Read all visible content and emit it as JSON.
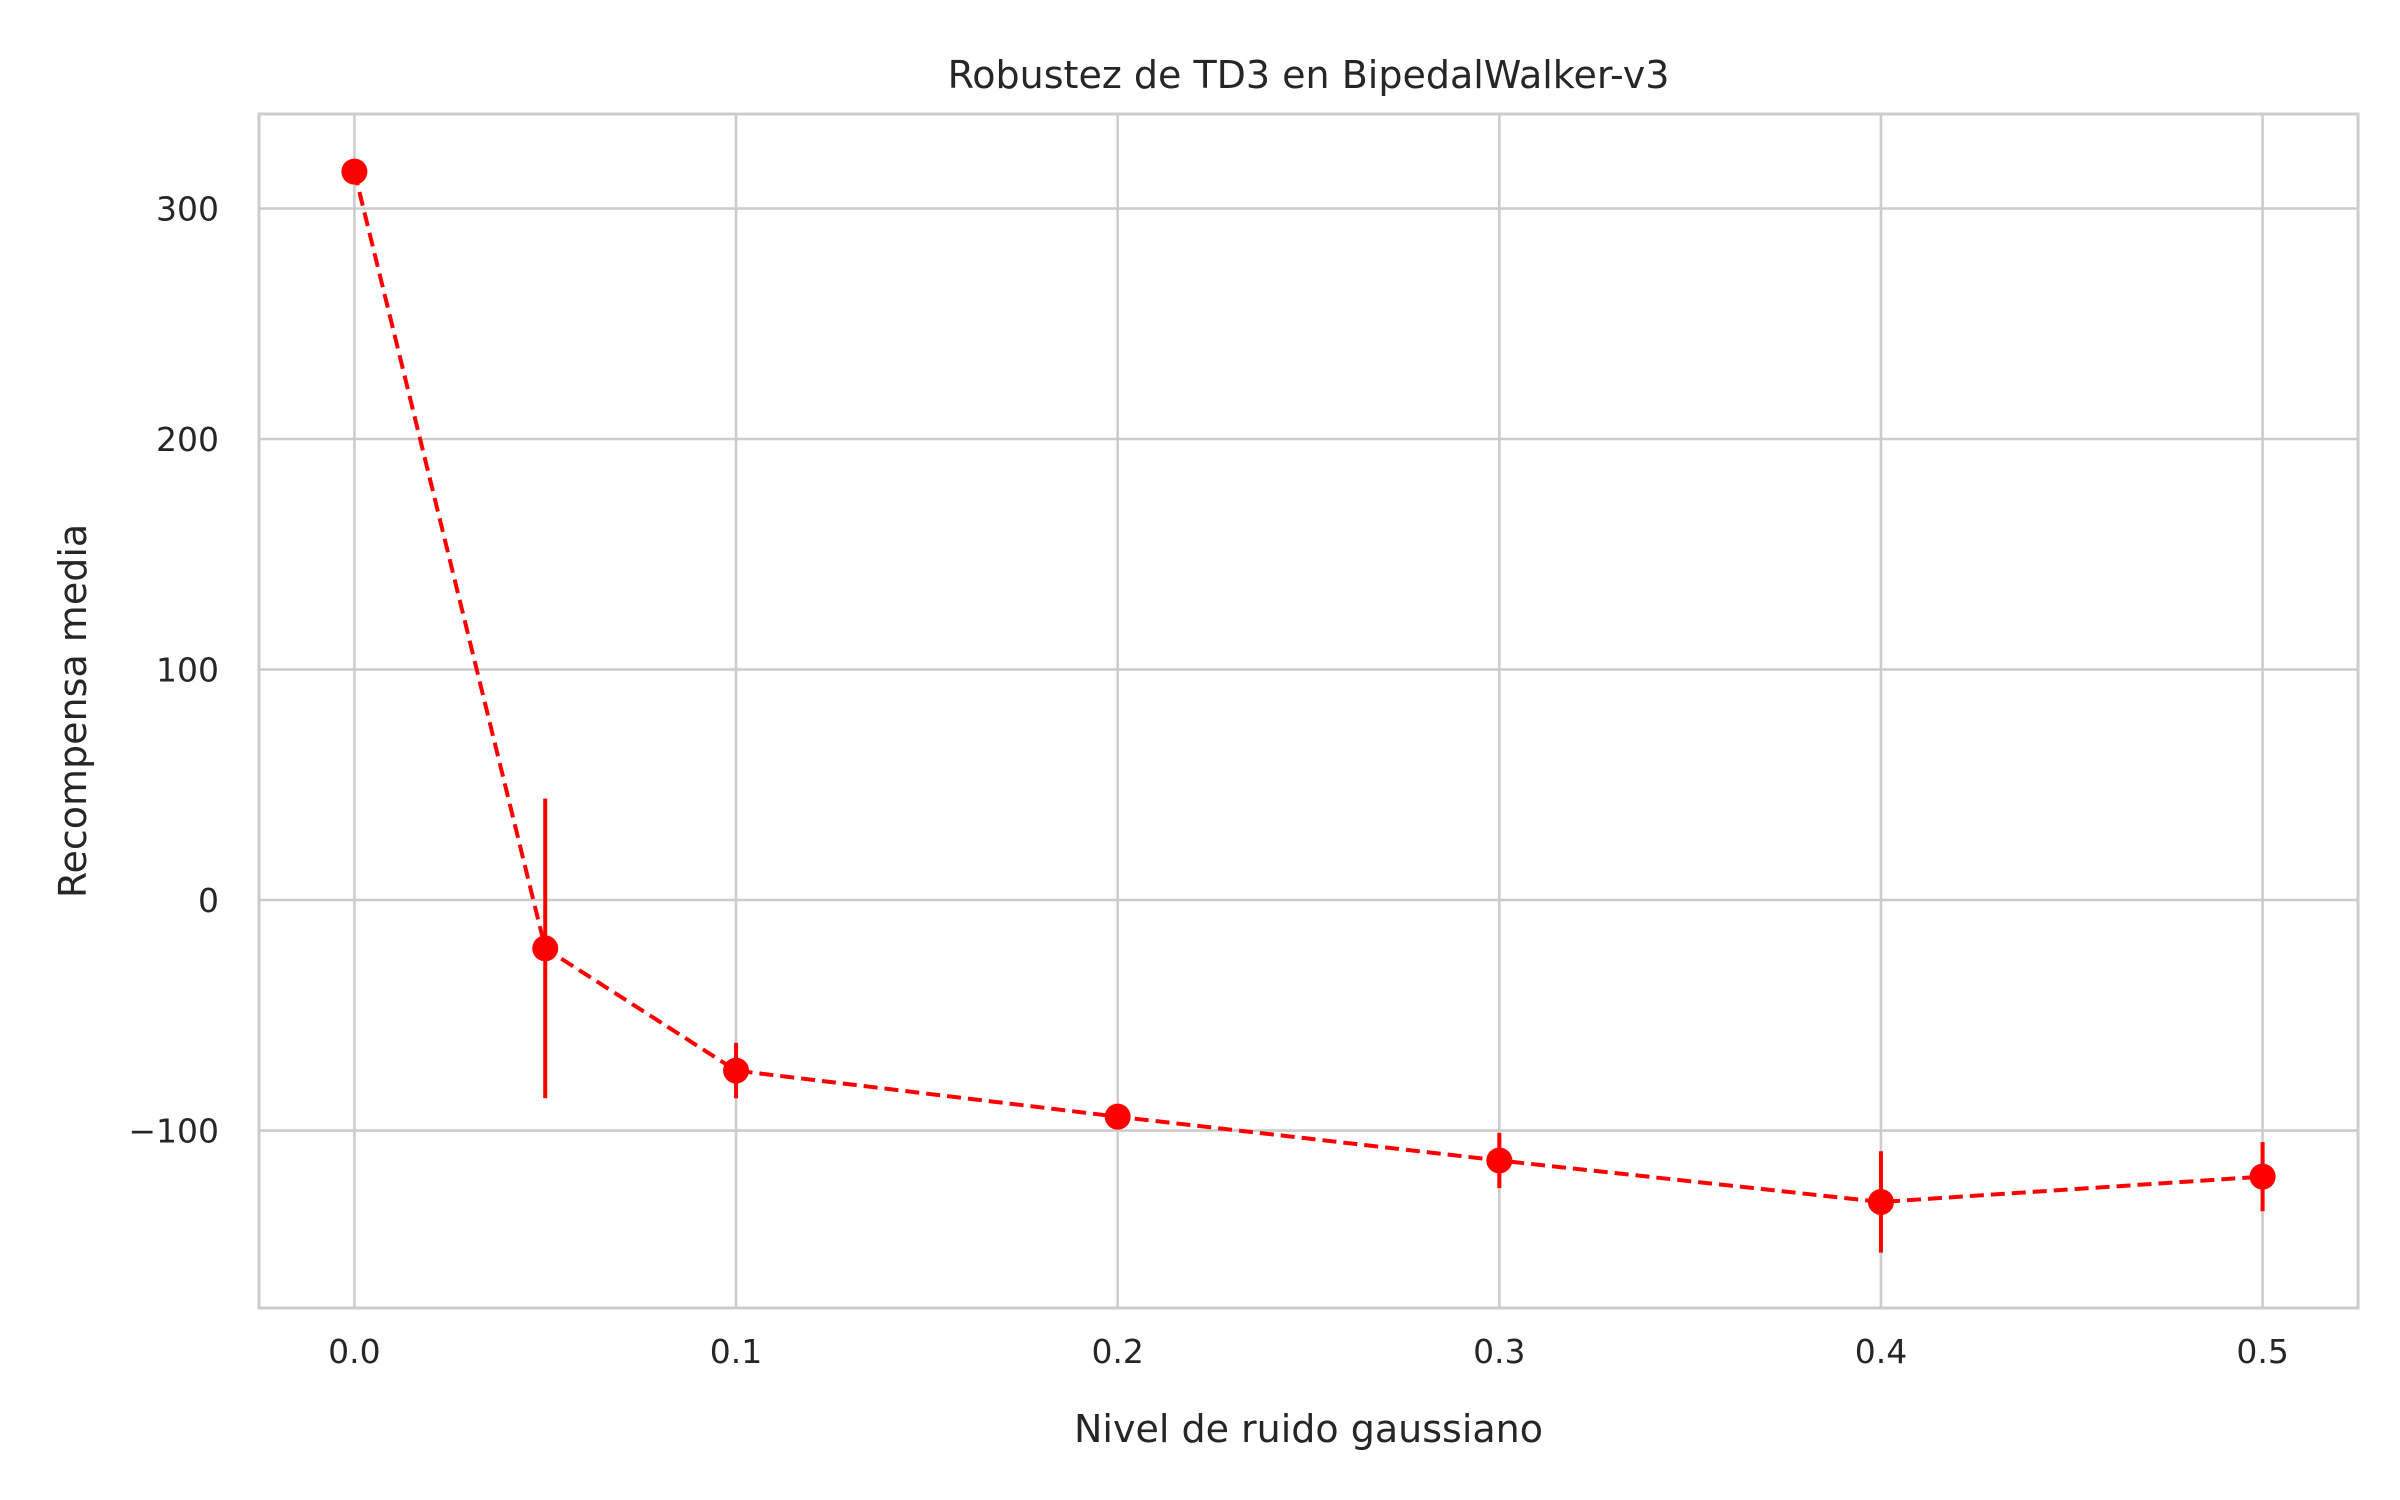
{
  "chart_data": {
    "type": "line",
    "title": "Robustez de TD3 en BipedalWalker-v3",
    "xlabel": "Nivel de ruido gaussiano",
    "ylabel": "Recompensa media",
    "xlim": [
      -0.025,
      0.525
    ],
    "ylim": [
      -177,
      341
    ],
    "x_ticks": [
      0.0,
      0.1,
      0.2,
      0.3,
      0.4,
      0.5
    ],
    "x_tick_labels": [
      "0.0",
      "0.1",
      "0.2",
      "0.3",
      "0.4",
      "0.5"
    ],
    "y_ticks": [
      -100,
      0,
      100,
      200,
      300
    ],
    "y_tick_labels": [
      "−100",
      "0",
      "100",
      "200",
      "300"
    ],
    "grid": true,
    "legend": "none",
    "series": [
      {
        "color": "#ff0000",
        "line_style": "dashed",
        "marker": "circle",
        "x": [
          0.0,
          0.05,
          0.1,
          0.2,
          0.3,
          0.4,
          0.5
        ],
        "y": [
          316,
          -21,
          -74,
          -94,
          -113,
          -131,
          -120
        ],
        "error": [
          0,
          65,
          12,
          3,
          12,
          22,
          15
        ]
      }
    ]
  }
}
